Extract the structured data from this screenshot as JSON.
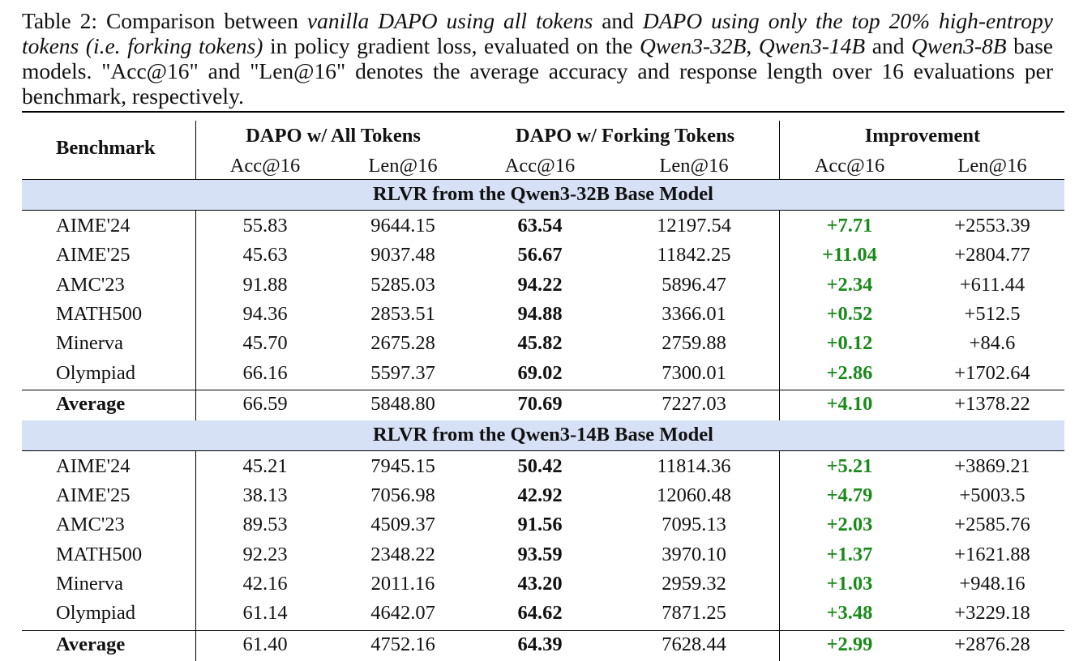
{
  "caption": {
    "p1": "Table 2: Comparison between ",
    "i1": "vanilla DAPO using all tokens",
    "p2": " and ",
    "i2": "DAPO using only the top 20% high-entropy tokens (i.e. forking tokens)",
    "p3": " in policy gradient loss, evaluated on the ",
    "i3": "Qwen3-32B",
    "p4": ", ",
    "i4": "Qwen3-14B",
    "p5": " and ",
    "i5": "Qwen3-8B",
    "p6": " base models. \"Acc@16\" and \"Len@16\" denotes the average accuracy and response length over 16 evaluations per benchmark, respectively."
  },
  "header": {
    "benchmark": "Benchmark",
    "group1": "DAPO w/ All Tokens",
    "group2": "DAPO w/ Forking Tokens",
    "group3": "Improvement",
    "sub": [
      "Acc@16",
      "Len@16",
      "Acc@16",
      "Len@16",
      "Acc@16",
      "Len@16"
    ]
  },
  "sections": [
    {
      "title": "RLVR from the Qwen3-32B Base Model",
      "rows": [
        [
          "AIME'24",
          "55.83",
          "9644.15",
          "63.54",
          "12197.54",
          "+7.71",
          "+2553.39"
        ],
        [
          "AIME'25",
          "45.63",
          "9037.48",
          "56.67",
          "11842.25",
          "+11.04",
          "+2804.77"
        ],
        [
          "AMC'23",
          "91.88",
          "5285.03",
          "94.22",
          "5896.47",
          "+2.34",
          "+611.44"
        ],
        [
          "MATH500",
          "94.36",
          "2853.51",
          "94.88",
          "3366.01",
          "+0.52",
          "+512.5"
        ],
        [
          "Minerva",
          "45.70",
          "2675.28",
          "45.82",
          "2759.88",
          "+0.12",
          "+84.6"
        ],
        [
          "Olympiad",
          "66.16",
          "5597.37",
          "69.02",
          "7300.01",
          "+2.86",
          "+1702.64"
        ]
      ],
      "average": [
        "Average",
        "66.59",
        "5848.80",
        "70.69",
        "7227.03",
        "+4.10",
        "+1378.22"
      ]
    },
    {
      "title": "RLVR from the Qwen3-14B Base Model",
      "rows": [
        [
          "AIME'24",
          "45.21",
          "7945.15",
          "50.42",
          "11814.36",
          "+5.21",
          "+3869.21"
        ],
        [
          "AIME'25",
          "38.13",
          "7056.98",
          "42.92",
          "12060.48",
          "+4.79",
          "+5003.5"
        ],
        [
          "AMC'23",
          "89.53",
          "4509.37",
          "91.56",
          "7095.13",
          "+2.03",
          "+2585.76"
        ],
        [
          "MATH500",
          "92.23",
          "2348.22",
          "93.59",
          "3970.10",
          "+1.37",
          "+1621.88"
        ],
        [
          "Minerva",
          "42.16",
          "2011.16",
          "43.20",
          "2959.32",
          "+1.03",
          "+948.16"
        ],
        [
          "Olympiad",
          "61.14",
          "4642.07",
          "64.62",
          "7871.25",
          "+3.48",
          "+3229.18"
        ]
      ],
      "average": [
        "Average",
        "61.40",
        "4752.16",
        "64.39",
        "7628.44",
        "+2.99",
        "+2876.28"
      ]
    }
  ],
  "colors": {
    "band": "#d6e1f6",
    "improvement": "#1a8a1a"
  }
}
